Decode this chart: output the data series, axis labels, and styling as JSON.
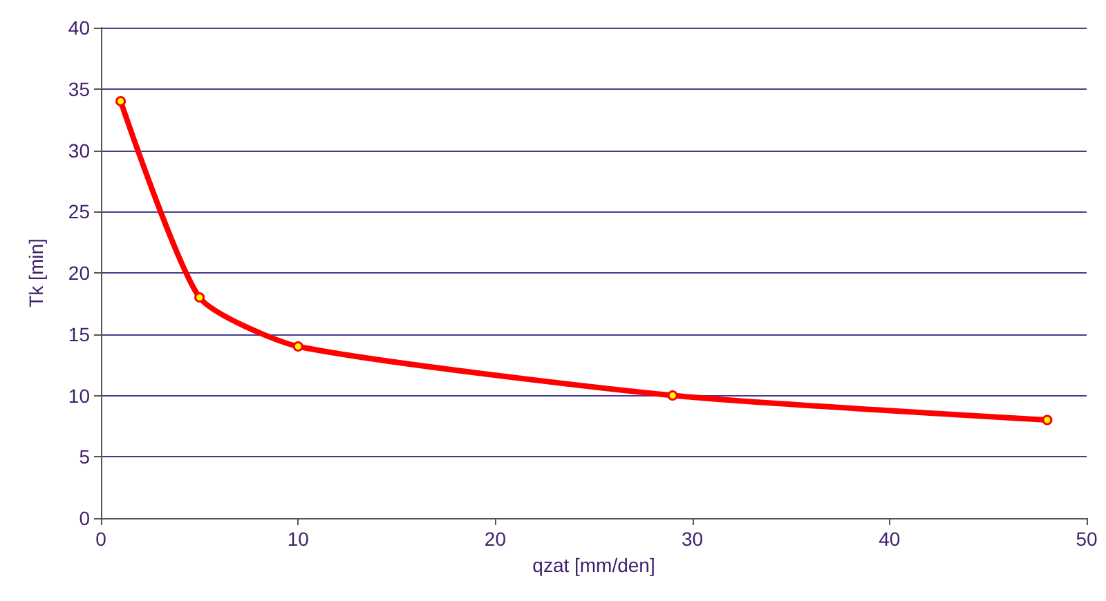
{
  "chart_data": {
    "type": "line",
    "xlabel": "qzat [mm/den]",
    "ylabel": "Tk [min]",
    "x": [
      1,
      5,
      10,
      29,
      48
    ],
    "series": [
      {
        "color": "#ff0000",
        "values": [
          34,
          18,
          14,
          10,
          8
        ]
      }
    ],
    "xlim": [
      0,
      50
    ],
    "xticks": [
      0,
      10,
      20,
      30,
      40,
      50
    ],
    "ylim": [
      0,
      40
    ],
    "yticks": [
      0,
      5,
      10,
      15,
      20,
      25,
      30,
      35,
      40
    ],
    "grid": "y",
    "marker": "circle",
    "line_style": "solid"
  }
}
